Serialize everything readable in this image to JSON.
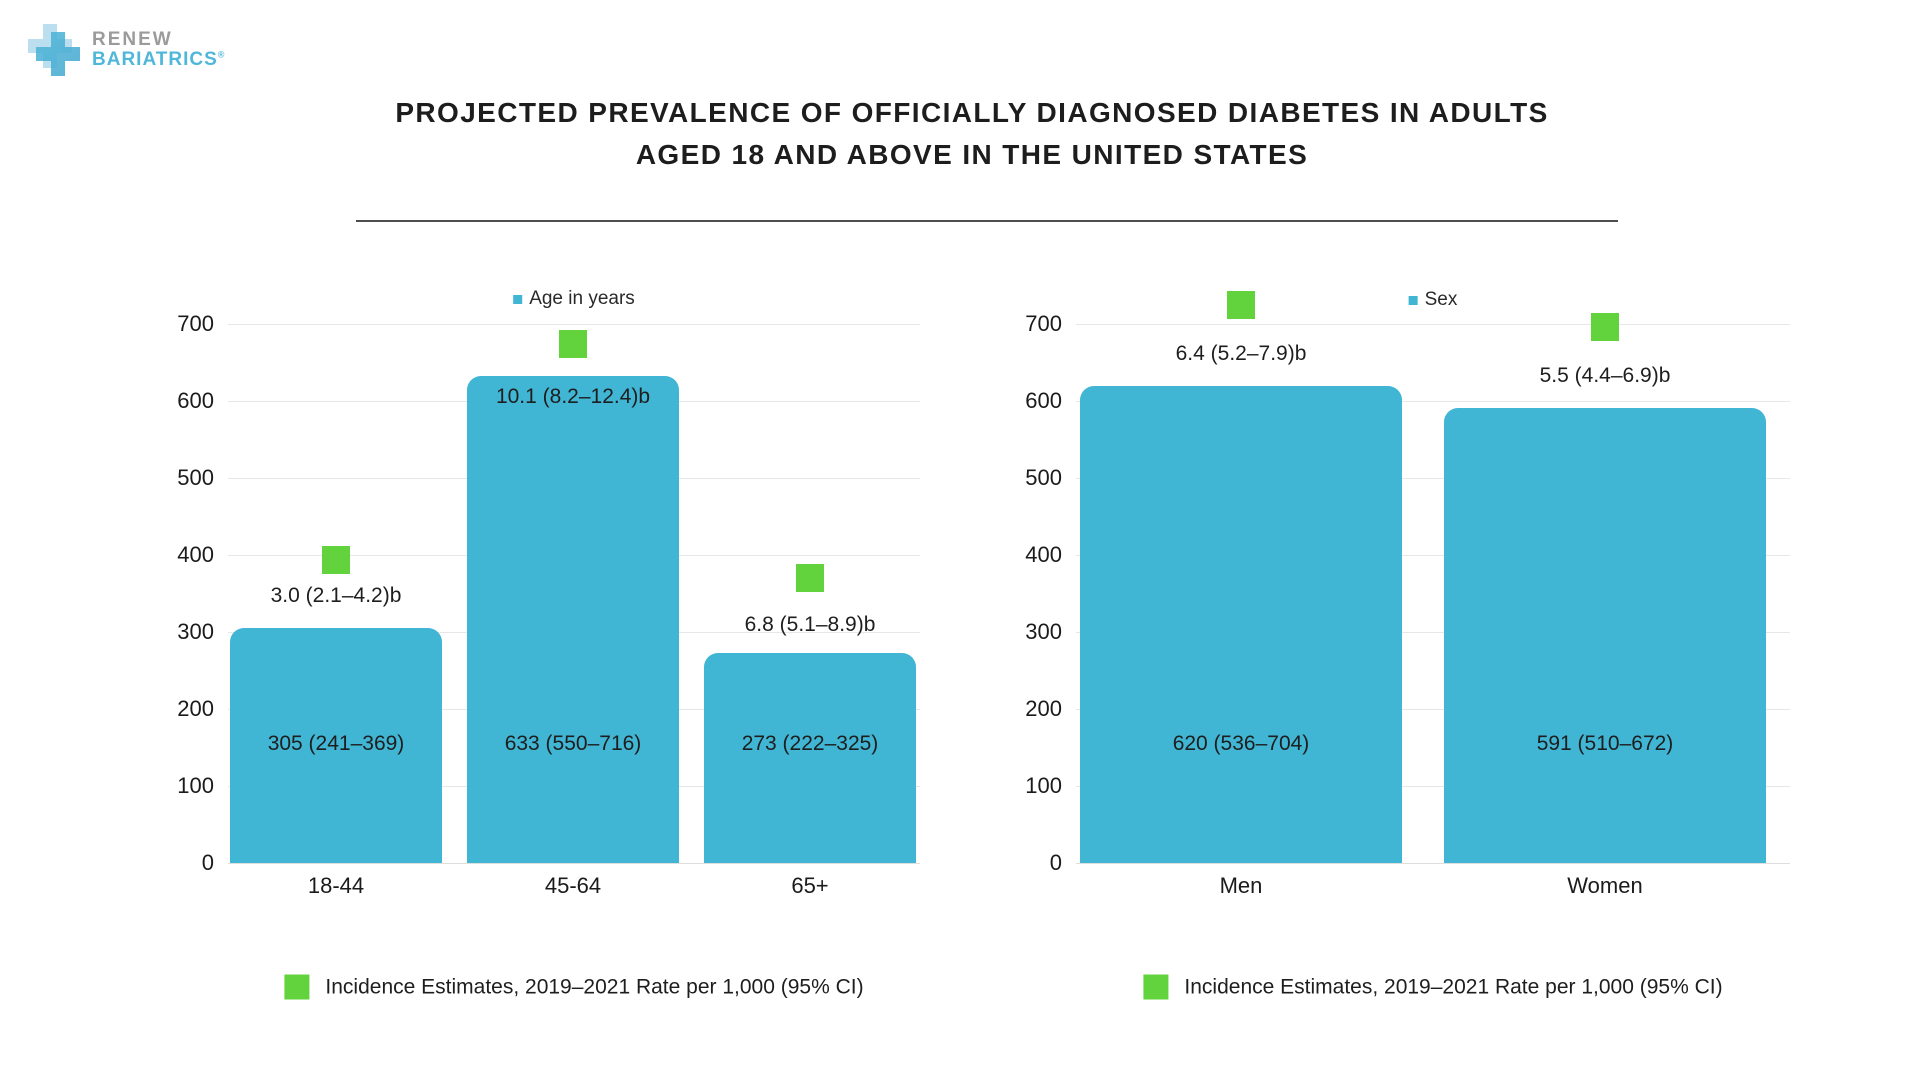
{
  "logo": {
    "line1": "RENEW",
    "line2": "BARIATRICS",
    "registered": "®"
  },
  "title": {
    "line1": "PROJECTED PREVALENCE OF OFFICIALLY DIAGNOSED DIABETES IN ADULTS",
    "line2": "AGED 18 AND ABOVE IN THE UNITED STATES"
  },
  "colors": {
    "bar_teal": "#40b5d4",
    "marker_green": "#62d33d",
    "grid_gray": "#e7e7e7",
    "text_dark": "#1c1c1c",
    "logo_gray": "#9b9b9b",
    "logo_blue": "#4fb7d9",
    "logo_cross_pale": "#bcdff0",
    "logo_cross_blue": "#49a8cf"
  },
  "chart_data": [
    {
      "type": "bar",
      "legend": "Age in years",
      "categories": [
        "18-44",
        "45-64",
        "65+"
      ],
      "values": [
        305,
        633,
        273
      ],
      "bar_labels": [
        "305 (241–369)",
        "633 (550–716)",
        "273 (222–325)"
      ],
      "rate_labels": [
        "3.0 (2.1–4.2)b",
        "10.1 (8.2–12.4)b",
        "6.8 (5.1–8.9)b"
      ],
      "rate_label_axis_pos": [
        347,
        605,
        309
      ],
      "marker_axis_pos": [
        394,
        674,
        370
      ],
      "value_label_axis_pos": 155,
      "ylim": [
        0,
        700
      ],
      "yticks": [
        700,
        600,
        500,
        400,
        300,
        200,
        100,
        0
      ],
      "grid": true,
      "legend_position": "top-center",
      "footer_legend": "Incidence Estimates, 2019–2021 Rate per 1,000 (95% CI)"
    },
    {
      "type": "bar",
      "legend": "Sex",
      "categories": [
        "Men",
        "Women"
      ],
      "values": [
        620,
        591
      ],
      "bar_labels": [
        "620 (536–704)",
        "591 (510–672)"
      ],
      "rate_labels": [
        "6.4 (5.2–7.9)b",
        "5.5 (4.4–6.9)b"
      ],
      "rate_label_axis_pos": [
        661,
        632
      ],
      "marker_axis_pos": [
        725,
        696
      ],
      "value_label_axis_pos": 155,
      "ylim": [
        0,
        700
      ],
      "yticks": [
        700,
        600,
        500,
        400,
        300,
        200,
        100,
        0
      ],
      "grid": true,
      "legend_position": "top-center",
      "footer_legend": "Incidence Estimates, 2019–2021 Rate per 1,000 (95% CI)"
    }
  ]
}
